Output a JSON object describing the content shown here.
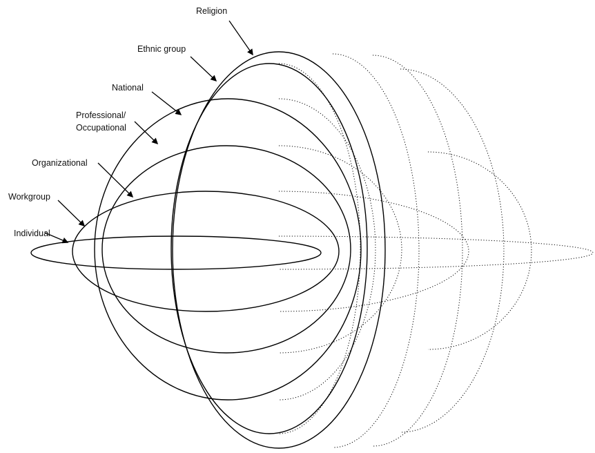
{
  "diagram": {
    "labels": {
      "religion": "Religion",
      "ethnic_group": "Ethnic group",
      "national": "National",
      "professional_line1": "Professional/",
      "professional_line2": "Occupational",
      "organizational": "Organizational",
      "workgroup": "Workgroup",
      "individual": "Individual"
    },
    "colors": {
      "stroke": "#000000",
      "background": "#ffffff"
    }
  }
}
